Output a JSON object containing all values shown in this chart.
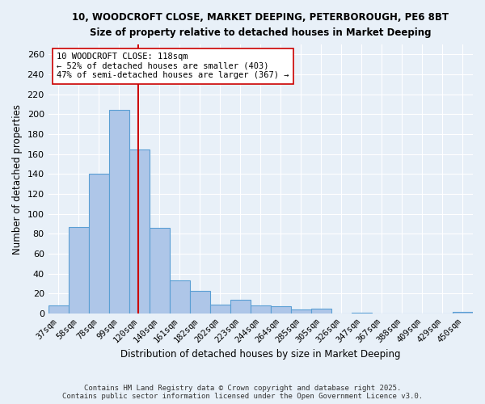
{
  "title_line1": "10, WOODCROFT CLOSE, MARKET DEEPING, PETERBOROUGH, PE6 8BT",
  "title_line2": "Size of property relative to detached houses in Market Deeping",
  "xlabel": "Distribution of detached houses by size in Market Deeping",
  "ylabel": "Number of detached properties",
  "bar_labels": [
    "37sqm",
    "58sqm",
    "78sqm",
    "99sqm",
    "120sqm",
    "140sqm",
    "161sqm",
    "182sqm",
    "202sqm",
    "223sqm",
    "244sqm",
    "264sqm",
    "285sqm",
    "305sqm",
    "326sqm",
    "347sqm",
    "367sqm",
    "388sqm",
    "409sqm",
    "429sqm",
    "450sqm"
  ],
  "bar_values": [
    8,
    87,
    140,
    204,
    165,
    86,
    33,
    23,
    9,
    14,
    8,
    7,
    4,
    5,
    0,
    1,
    0,
    0,
    0,
    0,
    2
  ],
  "bar_color": "#aec6e8",
  "bar_edge_color": "#5a9fd4",
  "vline_x": 3.95,
  "vline_color": "#cc0000",
  "annotation_text": "10 WOODCROFT CLOSE: 118sqm\n← 52% of detached houses are smaller (403)\n47% of semi-detached houses are larger (367) →",
  "annotation_box_color": "#ffffff",
  "annotation_box_edge": "#cc0000",
  "background_color": "#e8f0f8",
  "grid_color": "#ffffff",
  "ylim": [
    0,
    270
  ],
  "yticks": [
    0,
    20,
    40,
    60,
    80,
    100,
    120,
    140,
    160,
    180,
    200,
    220,
    240,
    260
  ],
  "footer_line1": "Contains HM Land Registry data © Crown copyright and database right 2025.",
  "footer_line2": "Contains public sector information licensed under the Open Government Licence v3.0."
}
